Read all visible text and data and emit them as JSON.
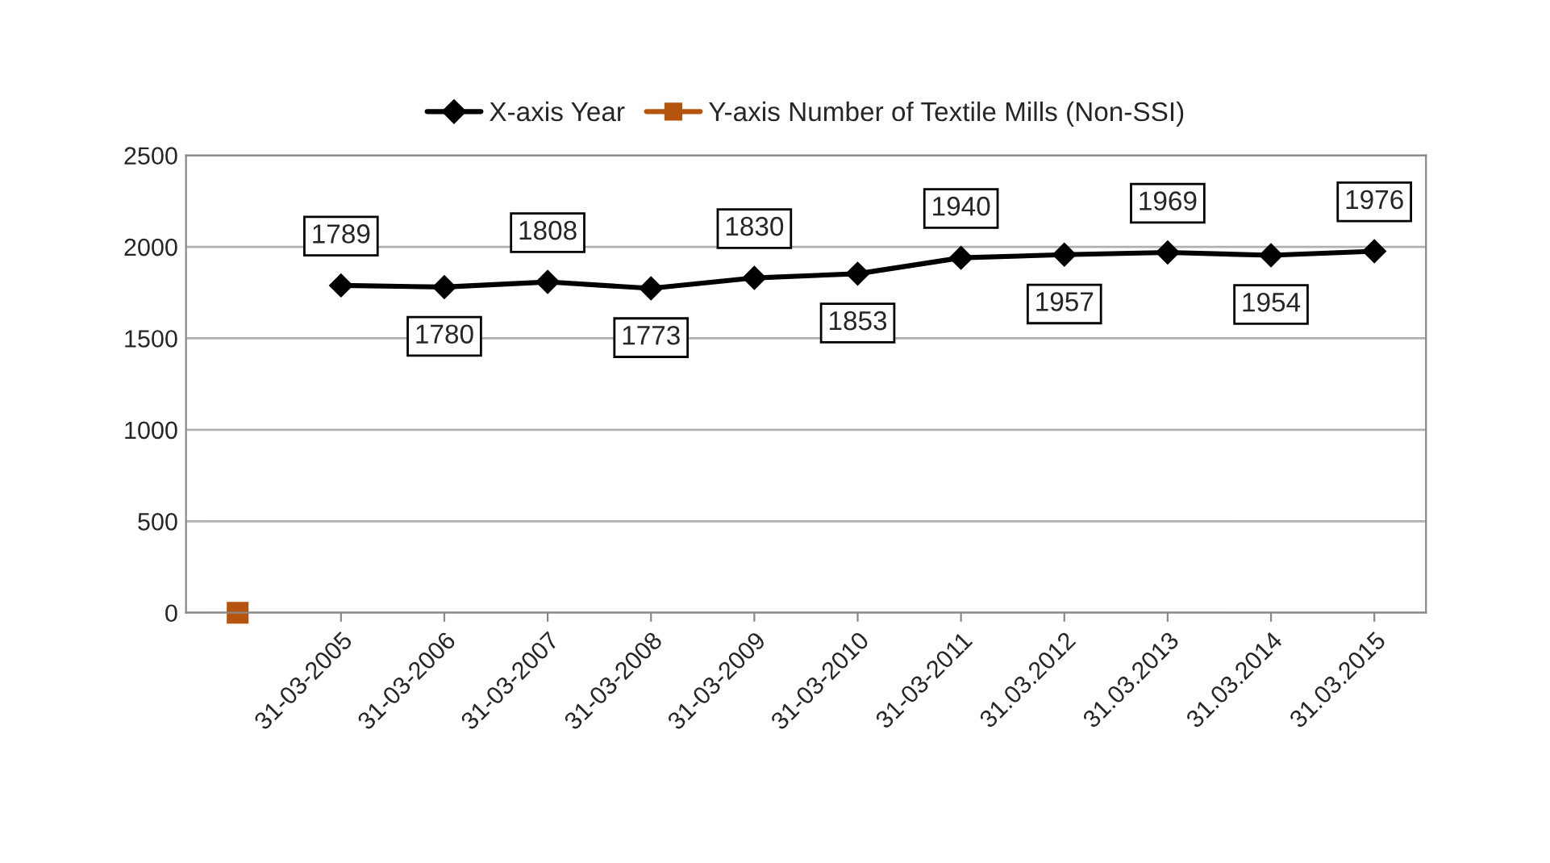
{
  "chart_data": {
    "type": "line",
    "categories": [
      null,
      "31-03-2005",
      "31-03-2006",
      "31-03-2007",
      "31-03-2008",
      "31-03-2009",
      "31-03-2010",
      "31-03-2011",
      "31.03.2012",
      "31.03.2013",
      "31.03.2014",
      "31.03.2015"
    ],
    "series": [
      {
        "name": "X-axis Year",
        "color": "#000000",
        "marker": "diamond",
        "values": [
          null,
          1789,
          1780,
          1808,
          1773,
          1830,
          1853,
          1940,
          1957,
          1969,
          1954,
          1976
        ],
        "value_labels": [
          null,
          "1789",
          "1780",
          "1808",
          "1773",
          "1830",
          "1853",
          "1940",
          "1957",
          "1969",
          "1954",
          "1976"
        ]
      },
      {
        "name": "Y-axis Number of Textile Mills (Non-SSI)",
        "color": "#b5540f",
        "marker": "square",
        "values": [
          0,
          null,
          null,
          null,
          null,
          null,
          null,
          null,
          null,
          null,
          null,
          null
        ]
      }
    ],
    "ylim": [
      0,
      2500
    ],
    "yticks": [
      0,
      500,
      1000,
      1500,
      2000,
      2500
    ],
    "grid": "y",
    "legend": "top"
  }
}
